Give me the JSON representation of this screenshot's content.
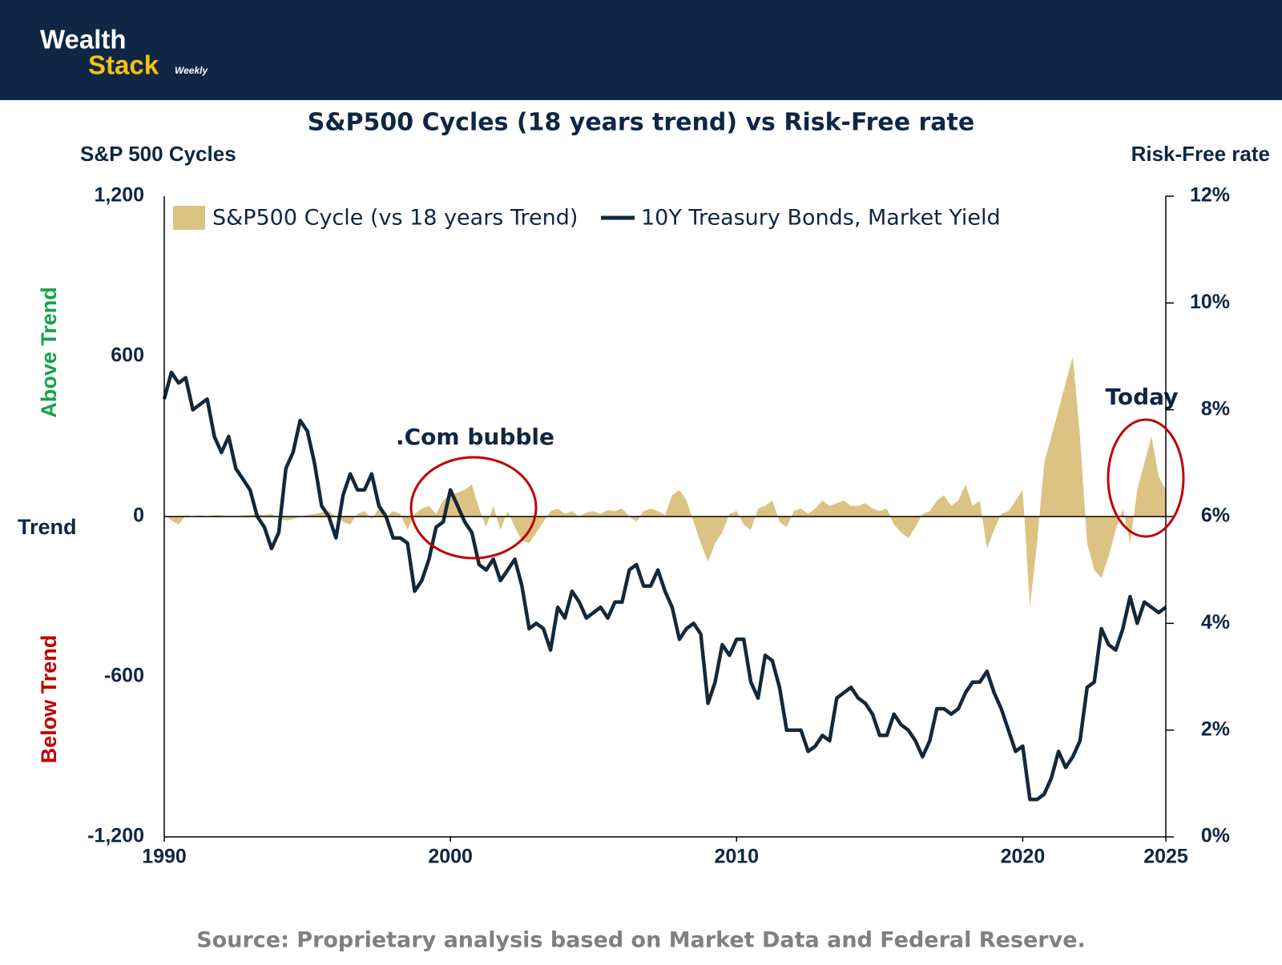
{
  "header": {
    "brand_line1": "Wealth",
    "brand_line2": "Stack",
    "brand_tag": "Weekly"
  },
  "chart_data": {
    "type": "area-line",
    "title": "S&P500 Cycles (18 years trend) vs Risk-Free rate",
    "y_axis_title": "S&P 500 Cycles",
    "y2_axis_title": "Risk-Free rate",
    "trend_label": "Trend",
    "above_label": "Above Trend",
    "below_label": "Below Trend",
    "annotations": [
      ".Com bubble",
      "Today"
    ],
    "source": "Source: Proprietary analysis based on Market Data and Federal Reserve.",
    "xlim": [
      1990,
      2025
    ],
    "xticks": [
      1990,
      2000,
      2010,
      2020,
      2025
    ],
    "ylim": [
      -1200,
      1200
    ],
    "yticks": [
      {
        "value": -1200,
        "label": "-1,200"
      },
      -600,
      0,
      600,
      {
        "value": 1200,
        "label": "1,200"
      }
    ],
    "y2lim": [
      0,
      12
    ],
    "y2ticks": [
      {
        "value": 0,
        "label": "0%"
      },
      {
        "value": 2,
        "label": "2%"
      },
      {
        "value": 4,
        "label": "4%"
      },
      {
        "value": 6,
        "label": "6%"
      },
      {
        "value": 8,
        "label": "8%"
      },
      {
        "value": 10,
        "label": "10%"
      },
      {
        "value": 12,
        "label": "12%"
      }
    ],
    "x": [
      1990,
      1990.25,
      1990.5,
      1990.75,
      1991,
      1991.25,
      1991.5,
      1991.75,
      1992,
      1992.25,
      1992.5,
      1992.75,
      1993,
      1993.25,
      1993.5,
      1993.75,
      1994,
      1994.25,
      1994.5,
      1994.75,
      1995,
      1995.25,
      1995.5,
      1995.75,
      1996,
      1996.25,
      1996.5,
      1996.75,
      1997,
      1997.25,
      1997.5,
      1997.75,
      1998,
      1998.25,
      1998.5,
      1998.75,
      1999,
      1999.25,
      1999.5,
      1999.75,
      2000,
      2000.25,
      2000.5,
      2000.75,
      2001,
      2001.25,
      2001.5,
      2001.75,
      2002,
      2002.25,
      2002.5,
      2002.75,
      2003,
      2003.25,
      2003.5,
      2003.75,
      2004,
      2004.25,
      2004.5,
      2004.75,
      2005,
      2005.25,
      2005.5,
      2005.75,
      2006,
      2006.25,
      2006.5,
      2006.75,
      2007,
      2007.25,
      2007.5,
      2007.75,
      2008,
      2008.25,
      2008.5,
      2008.75,
      2009,
      2009.25,
      2009.5,
      2009.75,
      2010,
      2010.25,
      2010.5,
      2010.75,
      2011,
      2011.25,
      2011.5,
      2011.75,
      2012,
      2012.25,
      2012.5,
      2012.75,
      2013,
      2013.25,
      2013.5,
      2013.75,
      2014,
      2014.25,
      2014.5,
      2014.75,
      2015,
      2015.25,
      2015.5,
      2015.75,
      2016,
      2016.25,
      2016.5,
      2016.75,
      2017,
      2017.25,
      2017.5,
      2017.75,
      2018,
      2018.25,
      2018.5,
      2018.75,
      2019,
      2019.25,
      2019.5,
      2019.75,
      2020,
      2020.25,
      2020.5,
      2020.75,
      2021,
      2021.25,
      2021.5,
      2021.75,
      2022,
      2022.25,
      2022.5,
      2022.75,
      2023,
      2023.25,
      2023.5,
      2023.75,
      2024,
      2024.25,
      2024.5,
      2024.75,
      2025
    ],
    "series": [
      {
        "name": "S&P500 Cycle (vs 18 years Trend)",
        "color": "#dcc384",
        "values": [
          10,
          -15,
          -30,
          5,
          0,
          5,
          0,
          5,
          5,
          0,
          0,
          5,
          5,
          10,
          5,
          10,
          -5,
          -15,
          -10,
          0,
          5,
          10,
          15,
          20,
          0,
          -20,
          -30,
          10,
          20,
          -10,
          30,
          0,
          20,
          10,
          -50,
          10,
          30,
          40,
          10,
          60,
          80,
          90,
          100,
          120,
          30,
          -40,
          40,
          -50,
          20,
          -40,
          -90,
          -100,
          -60,
          -20,
          20,
          30,
          10,
          20,
          0,
          15,
          20,
          10,
          25,
          20,
          30,
          0,
          -20,
          20,
          30,
          20,
          5,
          80,
          100,
          60,
          -20,
          -100,
          -170,
          -100,
          -60,
          10,
          20,
          -30,
          -50,
          30,
          40,
          60,
          -20,
          -40,
          20,
          30,
          10,
          30,
          60,
          40,
          50,
          60,
          40,
          40,
          50,
          30,
          20,
          30,
          -30,
          -60,
          -80,
          -40,
          10,
          20,
          60,
          80,
          40,
          60,
          120,
          40,
          60,
          -120,
          -50,
          10,
          20,
          60,
          100,
          -340,
          -100,
          200,
          300,
          400,
          500,
          600,
          300,
          -100,
          -200,
          -230,
          -150,
          -50,
          30,
          -100,
          100,
          200,
          300,
          150,
          100
        ]
      },
      {
        "name": "10Y Treasury Bonds, Market Yield",
        "color": "#14283a",
        "axis": "y2",
        "values": [
          8.2,
          8.7,
          8.5,
          8.6,
          8.0,
          8.1,
          8.2,
          7.5,
          7.2,
          7.5,
          6.9,
          6.7,
          6.5,
          6.0,
          5.8,
          5.4,
          5.7,
          6.9,
          7.2,
          7.8,
          7.6,
          7.0,
          6.2,
          6.0,
          5.6,
          6.4,
          6.8,
          6.5,
          6.5,
          6.8,
          6.2,
          6.0,
          5.6,
          5.6,
          5.5,
          4.6,
          4.8,
          5.2,
          5.8,
          5.9,
          6.5,
          6.2,
          5.9,
          5.7,
          5.1,
          5.0,
          5.2,
          4.8,
          5.0,
          5.2,
          4.7,
          3.9,
          4.0,
          3.9,
          3.5,
          4.3,
          4.1,
          4.6,
          4.4,
          4.1,
          4.2,
          4.3,
          4.1,
          4.4,
          4.4,
          5.0,
          5.1,
          4.7,
          4.7,
          5.0,
          4.6,
          4.3,
          3.7,
          3.9,
          4.0,
          3.8,
          2.5,
          2.9,
          3.6,
          3.4,
          3.7,
          3.7,
          2.9,
          2.6,
          3.4,
          3.3,
          2.8,
          2.0,
          2.0,
          2.0,
          1.6,
          1.7,
          1.9,
          1.8,
          2.6,
          2.7,
          2.8,
          2.6,
          2.5,
          2.3,
          1.9,
          1.9,
          2.3,
          2.1,
          2.0,
          1.8,
          1.5,
          1.8,
          2.4,
          2.4,
          2.3,
          2.4,
          2.7,
          2.9,
          2.9,
          3.1,
          2.7,
          2.4,
          2.0,
          1.6,
          1.7,
          0.7,
          0.7,
          0.8,
          1.1,
          1.6,
          1.3,
          1.5,
          1.8,
          2.8,
          2.9,
          3.9,
          3.6,
          3.5,
          3.9,
          4.5,
          4.0,
          4.4,
          4.3,
          4.2,
          4.3
        ]
      }
    ]
  }
}
